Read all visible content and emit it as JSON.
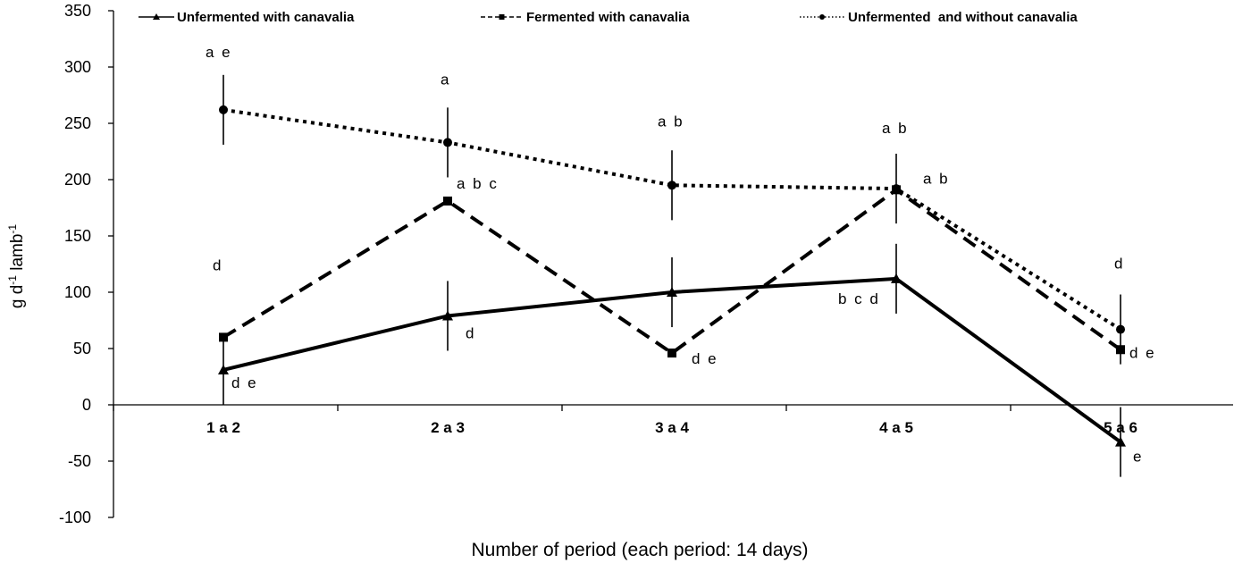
{
  "chart_data": {
    "type": "line",
    "title": "",
    "xlabel": "Number of period (each period: 14 days)",
    "ylabel_base": "g d",
    "ylabel_sup1": "-1",
    "ylabel_mid": " lamb",
    "ylabel_sup2": "-1",
    "ylim": [
      -100,
      350
    ],
    "yticks": [
      -100,
      -50,
      0,
      50,
      100,
      150,
      200,
      250,
      300,
      350
    ],
    "categories": [
      "1 a 2",
      "2 a 3",
      "3 a 4",
      "4 a 5",
      "5 a 6"
    ],
    "legend_position": "top",
    "series": [
      {
        "name": "Unfermented with canavalia",
        "key": "unfermented-canavalia",
        "style": "solid",
        "marker": "triangle",
        "values": [
          31,
          79,
          100,
          112,
          -33
        ],
        "error": [
          31,
          31,
          31,
          31,
          31
        ],
        "labels": [
          "d e",
          "d",
          "",
          "b c d",
          "e"
        ]
      },
      {
        "name": "Fermented with canavalia",
        "key": "fermented-canavalia",
        "style": "dashed",
        "marker": "square",
        "values": [
          60,
          181,
          46,
          191,
          49
        ],
        "error": [
          0,
          0,
          0,
          0,
          0
        ],
        "labels": [
          "d",
          "a b c",
          "d e",
          "a b",
          "d e"
        ]
      },
      {
        "name": "Unfermented  and without canavalia",
        "key": "unfermented-without-canavalia",
        "style": "dotted",
        "marker": "circle",
        "values": [
          262,
          233,
          195,
          192,
          67
        ],
        "error": [
          31,
          31,
          31,
          31,
          31
        ],
        "labels": [
          "a e",
          "a",
          "a b",
          "a b",
          "d"
        ]
      }
    ],
    "label_offsets": [
      [
        [
          10,
          -12
        ],
        [
          0,
          0
        ],
        [
          0,
          0
        ],
        [
          0,
          0
        ],
        [
          0,
          0
        ]
      ]
    ],
    "colors": {
      "line": "#000000"
    }
  }
}
